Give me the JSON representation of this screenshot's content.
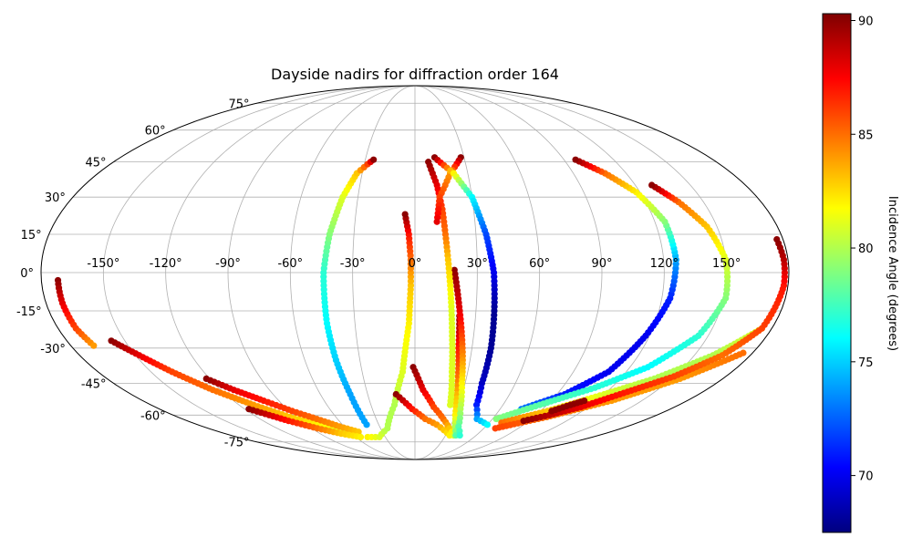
{
  "chart_data": {
    "type": "scatter",
    "projection": "mollweide",
    "title": "Dayside nadirs for diffraction order 164",
    "grid": true,
    "lon_ticks": [
      "-150°",
      "-120°",
      "-90°",
      "-60°",
      "-30°",
      "0°",
      "30°",
      "60°",
      "90°",
      "120°",
      "150°"
    ],
    "lat_ticks": [
      "75°",
      "60°",
      "45°",
      "30°",
      "15°",
      "0°",
      "-15°",
      "-30°",
      "-45°",
      "-60°",
      "-75°"
    ],
    "colorbar": {
      "label": "Incidence Angle (degrees)",
      "colormap": "jet",
      "range": [
        67.5,
        90.3
      ],
      "ticks": [
        "70",
        "75",
        "80",
        "85",
        "90"
      ],
      "location": "right"
    },
    "tracks": [
      {
        "points": [
          [
            -172,
            -3,
            90
          ],
          [
            -172,
            -12,
            88
          ],
          [
            -171,
            -22,
            86
          ],
          [
            -168,
            -29,
            84
          ]
        ]
      },
      {
        "points": [
          [
            -157,
            -27,
            90
          ],
          [
            -148,
            -33,
            88
          ],
          [
            -138,
            -40,
            86
          ],
          [
            -125,
            -48,
            85
          ],
          [
            -110,
            -55,
            84
          ],
          [
            -95,
            -61,
            83
          ],
          [
            -80,
            -65,
            82
          ],
          [
            -65,
            -69,
            81
          ],
          [
            -55,
            -71,
            80
          ]
        ]
      },
      {
        "points": [
          [
            -122,
            -43,
            90
          ],
          [
            -112,
            -48,
            88
          ],
          [
            -100,
            -53,
            87
          ],
          [
            -88,
            -58,
            86
          ],
          [
            -76,
            -62,
            85
          ],
          [
            -64,
            -66,
            84
          ],
          [
            -52,
            -69,
            83
          ]
        ]
      },
      {
        "points": [
          [
            -117,
            -57,
            90
          ],
          [
            -100,
            -63,
            87
          ],
          [
            -85,
            -67,
            85
          ],
          [
            -70,
            -70,
            83
          ],
          [
            -55,
            -72,
            82
          ]
        ]
      },
      {
        "points": [
          [
            -40,
            -65,
            74
          ],
          [
            -41,
            -50,
            74
          ],
          [
            -43,
            -35,
            75
          ],
          [
            -44,
            -20,
            76
          ],
          [
            -44,
            0,
            77
          ],
          [
            -42,
            15,
            79
          ],
          [
            -38,
            30,
            81
          ],
          [
            -33,
            40,
            83
          ],
          [
            -28,
            44,
            86
          ],
          [
            -25,
            46,
            90
          ]
        ]
      },
      {
        "points": [
          [
            -48,
            -72,
            82
          ],
          [
            -36,
            -72,
            81
          ],
          [
            -24,
            -67,
            80
          ],
          [
            -14,
            -55,
            80
          ],
          [
            -7,
            -40,
            81
          ],
          [
            -3,
            -20,
            82
          ],
          [
            -2,
            -5,
            83
          ],
          [
            -2,
            5,
            85
          ],
          [
            -3,
            15,
            87
          ],
          [
            -5,
            23,
            90
          ]
        ]
      },
      {
        "points": [
          [
            -12,
            -50,
            90
          ],
          [
            -2,
            -57,
            87
          ],
          [
            8,
            -62,
            85
          ],
          [
            18,
            -65,
            84
          ],
          [
            26,
            -68,
            83
          ],
          [
            34,
            -71,
            82
          ]
        ]
      },
      {
        "points": [
          [
            -1,
            -38,
            90
          ],
          [
            5,
            -48,
            88
          ],
          [
            13,
            -56,
            86
          ],
          [
            22,
            -62,
            85
          ],
          [
            30,
            -67,
            83
          ],
          [
            38,
            -71,
            81
          ]
        ]
      },
      {
        "points": [
          [
            22,
            -17,
            90
          ],
          [
            23,
            -30,
            87
          ],
          [
            25,
            -42,
            85
          ],
          [
            27,
            -52,
            83
          ],
          [
            30,
            -60,
            82
          ],
          [
            34,
            -66,
            80
          ],
          [
            40,
            -71,
            78
          ]
        ]
      },
      {
        "points": [
          [
            19,
            1,
            90
          ],
          [
            22,
            -15,
            88
          ],
          [
            25,
            -30,
            85
          ],
          [
            28,
            -45,
            82
          ],
          [
            32,
            -57,
            80
          ],
          [
            37,
            -66,
            78
          ],
          [
            44,
            -71,
            77
          ]
        ]
      },
      {
        "points": [
          [
            8,
            45,
            90
          ],
          [
            12,
            35,
            88
          ],
          [
            14,
            25,
            86
          ],
          [
            15,
            15,
            85
          ],
          [
            16,
            5,
            83
          ],
          [
            17,
            -5,
            82
          ],
          [
            18,
            -15,
            81
          ],
          [
            19,
            -25,
            81
          ],
          [
            21,
            -40,
            81
          ],
          [
            24,
            -55,
            81
          ]
        ]
      },
      {
        "points": [
          [
            28,
            47,
            90
          ],
          [
            20,
            40,
            84
          ],
          [
            13,
            30,
            86
          ],
          [
            11,
            20,
            88
          ]
        ]
      },
      {
        "points": [
          [
            12,
            47,
            90
          ],
          [
            22,
            40,
            82
          ],
          [
            30,
            30,
            76
          ],
          [
            35,
            15,
            72
          ],
          [
            38,
            0,
            70
          ],
          [
            39,
            -15,
            68
          ],
          [
            40,
            -30,
            68
          ],
          [
            40,
            -45,
            69
          ],
          [
            42,
            -55,
            71
          ],
          [
            48,
            -62,
            74
          ],
          [
            60,
            -65,
            76
          ]
        ]
      },
      {
        "points": [
          [
            75,
            -57,
            73
          ],
          [
            95,
            -50,
            71
          ],
          [
            110,
            -40,
            70
          ],
          [
            118,
            -25,
            70
          ],
          [
            124,
            -10,
            71
          ],
          [
            126,
            5,
            74
          ],
          [
            125,
            20,
            79
          ],
          [
            118,
            32,
            82
          ],
          [
            108,
            40,
            85
          ],
          [
            97,
            46,
            90
          ]
        ]
      },
      {
        "points": [
          [
            63,
            -62,
            79
          ],
          [
            85,
            -55,
            78
          ],
          [
            110,
            -47,
            77
          ],
          [
            130,
            -38,
            76
          ],
          [
            145,
            -25,
            77
          ],
          [
            151,
            -10,
            79
          ],
          [
            150,
            5,
            81
          ],
          [
            145,
            18,
            83
          ],
          [
            137,
            28,
            85
          ],
          [
            129,
            35,
            90
          ]
        ]
      },
      {
        "points": [
          [
            70,
            -64,
            85
          ],
          [
            95,
            -58,
            83
          ],
          [
            120,
            -50,
            81
          ],
          [
            140,
            -43,
            80
          ],
          [
            160,
            -33,
            80
          ],
          [
            175,
            -22,
            81
          ]
        ]
      },
      {
        "points": [
          [
            70,
            -67,
            86
          ],
          [
            100,
            -61,
            85
          ],
          [
            130,
            -53,
            84
          ],
          [
            155,
            -43,
            84
          ],
          [
            175,
            -32,
            85
          ]
        ]
      },
      {
        "points": [
          [
            86,
            -63,
            90
          ],
          [
            100,
            -60,
            89
          ],
          [
            115,
            -56,
            88
          ],
          [
            130,
            -50,
            87
          ],
          [
            150,
            -42,
            86
          ],
          [
            165,
            -33,
            85
          ],
          [
            175,
            -22,
            86
          ],
          [
            178,
            -5,
            87
          ],
          [
            178,
            5,
            89
          ],
          [
            177,
            13,
            90
          ]
        ]
      },
      {
        "points": [
          [
            98,
            -58,
            90
          ],
          [
            106,
            -55,
            90
          ],
          [
            112,
            -53,
            90
          ]
        ]
      }
    ]
  }
}
